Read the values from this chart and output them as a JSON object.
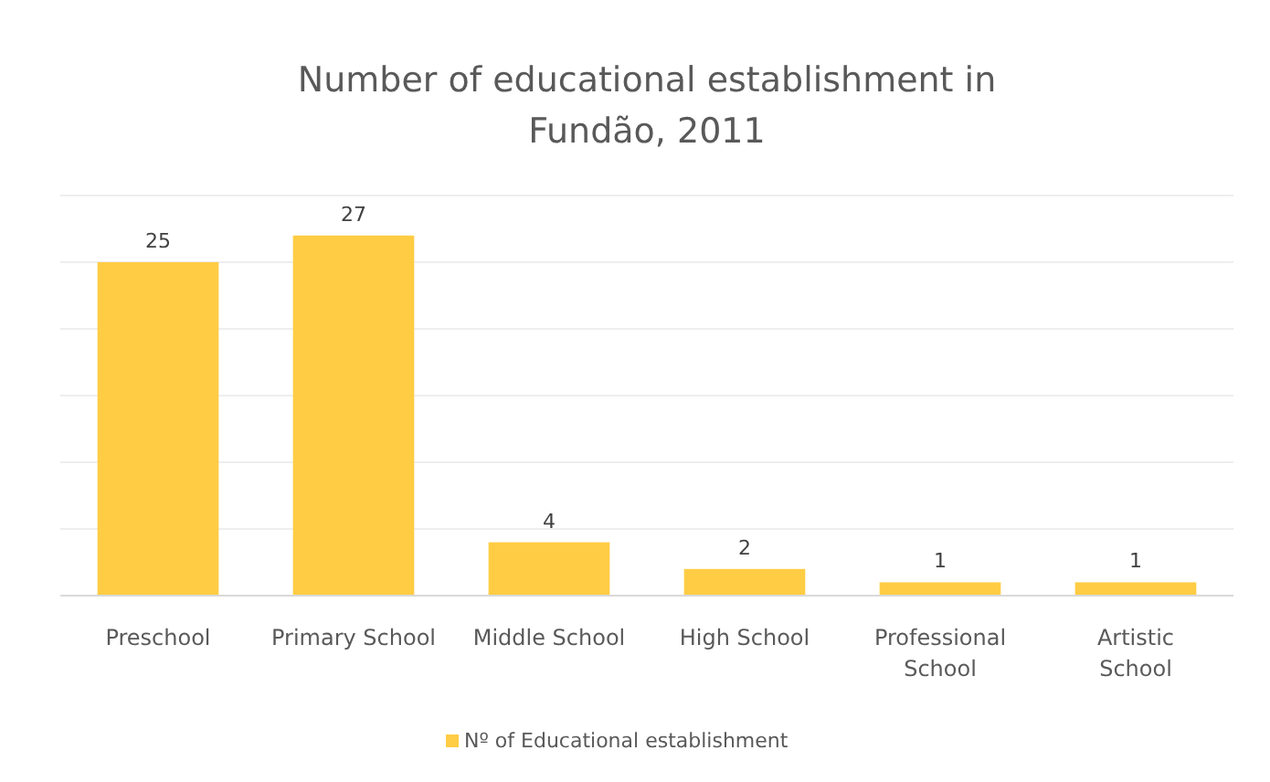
{
  "chart_data": {
    "type": "bar",
    "title": "Number of educational establishment in Fundão, 2011",
    "categories": [
      "Preschool",
      "Primary School",
      "Middle School",
      "High School",
      "Professional School",
      "Artistic School"
    ],
    "series": [
      {
        "name": "Nº of Educational establishment",
        "color": "#ffcc44",
        "values": [
          25,
          27,
          4,
          2,
          1,
          1
        ]
      }
    ],
    "ylim": [
      0,
      30
    ],
    "yticks": [
      {
        "value": 0,
        "label": null
      },
      {
        "value": 5,
        "label": null
      },
      {
        "value": 10,
        "label": null
      },
      {
        "value": 15,
        "label": null
      },
      {
        "value": 20,
        "label": null
      },
      {
        "value": 25,
        "label": null
      },
      {
        "value": 30,
        "label": null
      }
    ],
    "tick_labels": "x",
    "grid": "y",
    "data_labels": true,
    "legend": "bottom"
  }
}
